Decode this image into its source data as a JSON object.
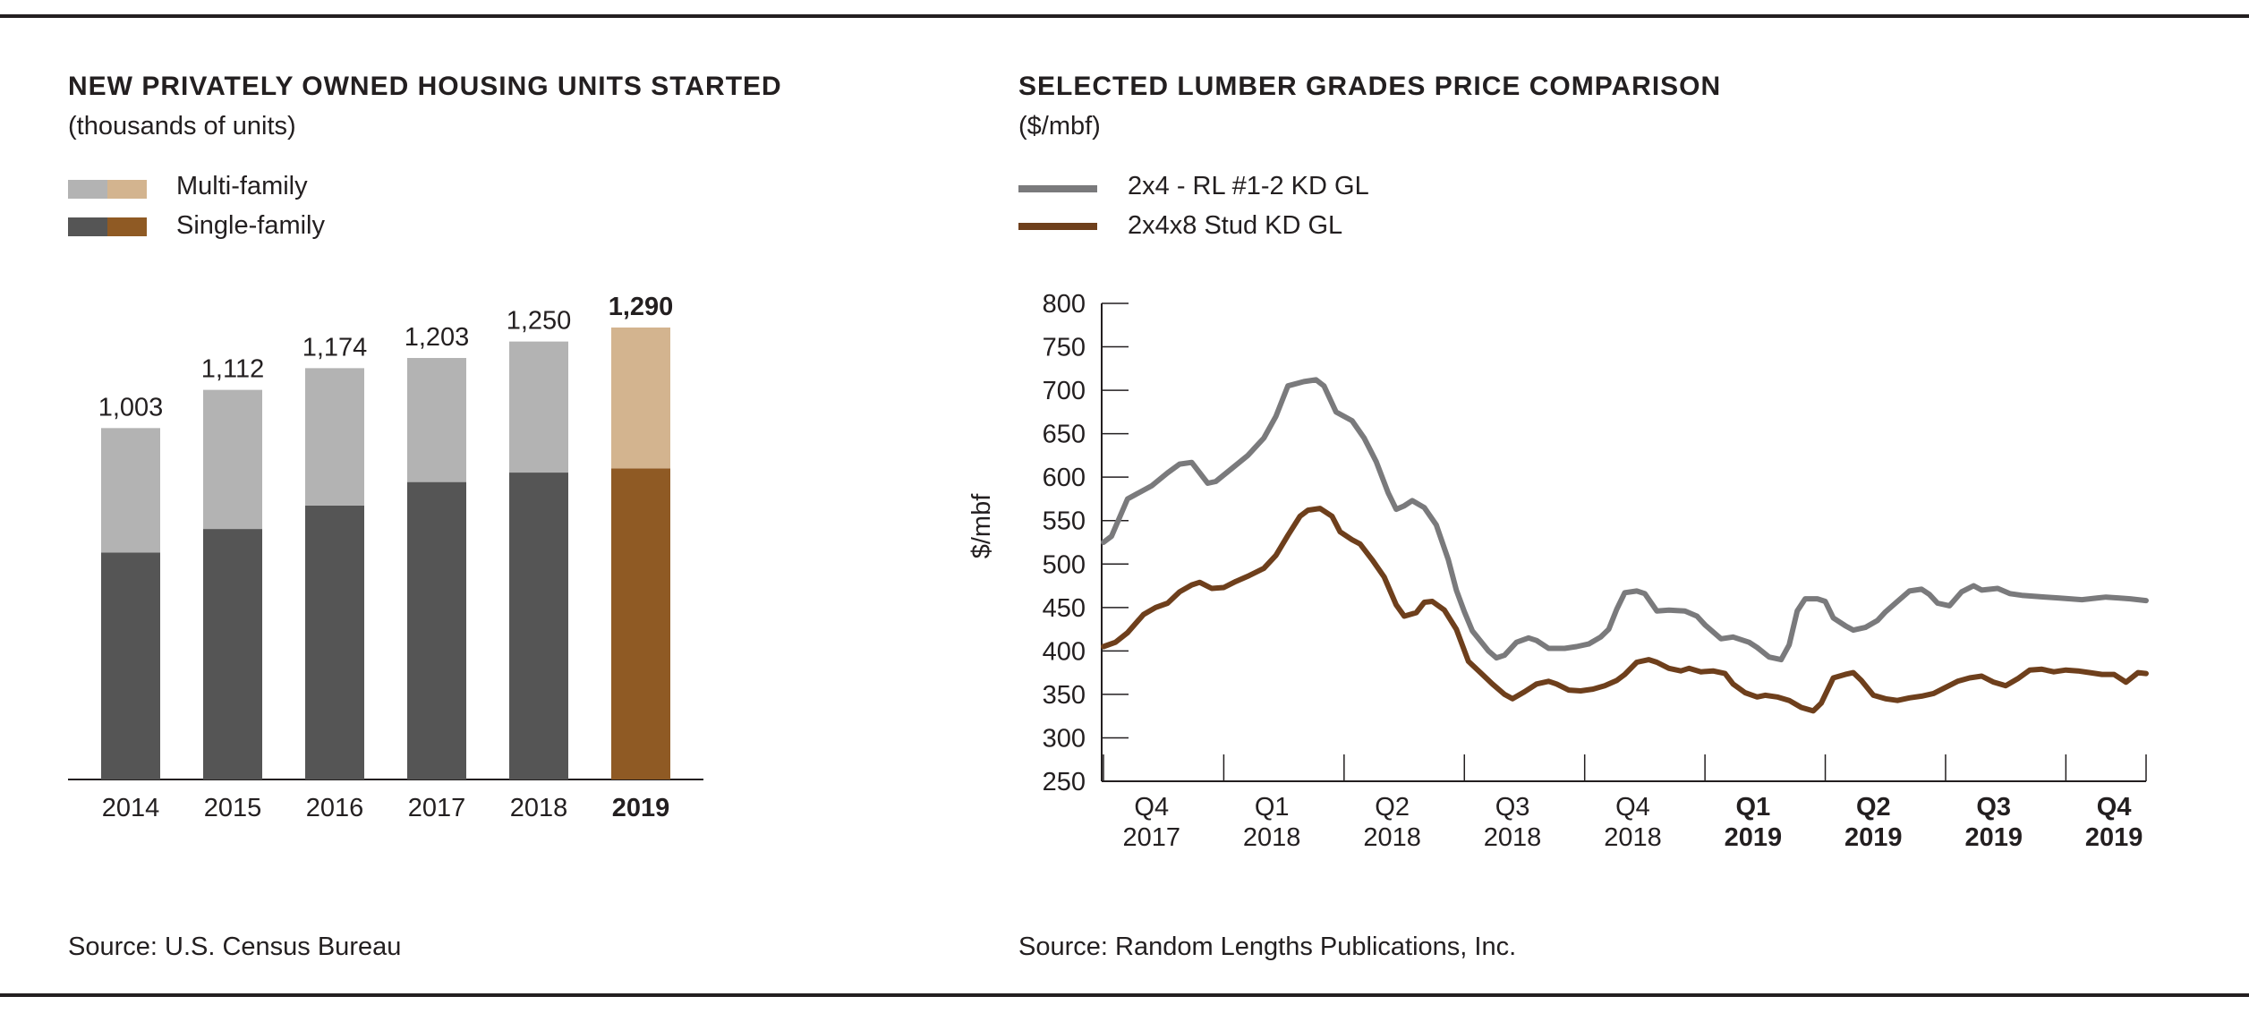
{
  "left_panel": {
    "title": "NEW PRIVATELY OWNED HOUSING UNITS STARTED",
    "subtitle": "(thousands of units)",
    "legend": [
      {
        "label": "Multi-family",
        "colors": [
          "#b3b3b3",
          "#d3b48f"
        ]
      },
      {
        "label": "Single-family",
        "colors": [
          "#555555",
          "#8f5a24"
        ]
      }
    ],
    "source": "Source: U.S. Census Bureau"
  },
  "right_panel": {
    "title": "SELECTED LUMBER GRADES PRICE COMPARISON",
    "subtitle": "($/mbf)",
    "legend": [
      {
        "label": "2x4 - RL #1-2 KD GL",
        "color": "#7a7a7c"
      },
      {
        "label": "2x4x8 Stud KD GL",
        "color": "#6e3f1c"
      }
    ],
    "source": "Source: Random Lengths Publications, Inc."
  },
  "chart_data": [
    {
      "type": "bar",
      "stacked": true,
      "categories": [
        "2014",
        "2015",
        "2016",
        "2017",
        "2018",
        "2019"
      ],
      "highlight_category": "2019",
      "totals": [
        "1,003",
        "1,112",
        "1,174",
        "1,203",
        "1,250",
        "1,290"
      ],
      "series": [
        {
          "name": "Single-family",
          "values": [
            648,
            715,
            782,
            849,
            876,
            888
          ],
          "color": "#555555",
          "highlight_color": "#8f5a24"
        },
        {
          "name": "Multi-family",
          "values": [
            355,
            397,
            392,
            354,
            374,
            402
          ],
          "color": "#b3b3b3",
          "highlight_color": "#d3b48f"
        }
      ],
      "ylim": [
        0,
        1400
      ]
    },
    {
      "type": "line",
      "ylabel": "$/mbf",
      "ylim": [
        250,
        800
      ],
      "yticks": [
        800,
        750,
        700,
        650,
        600,
        550,
        500,
        450,
        400,
        350,
        300,
        250
      ],
      "x_range": [
        0,
        26
      ],
      "x_tick_positions": [
        0,
        3,
        6,
        9,
        12,
        15,
        18,
        21,
        24,
        26
      ],
      "quarter_labels": [
        {
          "q": "Q4",
          "y": "2017",
          "bold": false
        },
        {
          "q": "Q1",
          "y": "2018",
          "bold": false
        },
        {
          "q": "Q2",
          "y": "2018",
          "bold": false
        },
        {
          "q": "Q3",
          "y": "2018",
          "bold": false
        },
        {
          "q": "Q4",
          "y": "2018",
          "bold": false
        },
        {
          "q": "Q1",
          "y": "2019",
          "bold": true
        },
        {
          "q": "Q2",
          "y": "2019",
          "bold": true
        },
        {
          "q": "Q3",
          "y": "2019",
          "bold": true
        },
        {
          "q": "Q4",
          "y": "2019",
          "bold": true
        }
      ],
      "series": [
        {
          "name": "2x4 - RL #1-2 KD GL",
          "color": "#7a7a7c",
          "points": [
            [
              0,
              525
            ],
            [
              0.2,
              532
            ],
            [
              0.6,
              575
            ],
            [
              1.2,
              590
            ],
            [
              1.6,
              605
            ],
            [
              1.9,
              615
            ],
            [
              2.2,
              617
            ],
            [
              2.6,
              593
            ],
            [
              2.8,
              595
            ],
            [
              3.2,
              610
            ],
            [
              3.6,
              625
            ],
            [
              4.0,
              645
            ],
            [
              4.3,
              670
            ],
            [
              4.6,
              705
            ],
            [
              5.0,
              710
            ],
            [
              5.3,
              712
            ],
            [
              5.5,
              705
            ],
            [
              5.8,
              675
            ],
            [
              6.2,
              665
            ],
            [
              6.5,
              645
            ],
            [
              6.8,
              618
            ],
            [
              7.1,
              582
            ],
            [
              7.3,
              563
            ],
            [
              7.5,
              567
            ],
            [
              7.7,
              573
            ],
            [
              8.0,
              565
            ],
            [
              8.3,
              545
            ],
            [
              8.6,
              505
            ],
            [
              8.8,
              470
            ],
            [
              9.0,
              445
            ],
            [
              9.2,
              423
            ],
            [
              9.6,
              400
            ],
            [
              9.8,
              392
            ],
            [
              10.0,
              395
            ],
            [
              10.3,
              410
            ],
            [
              10.6,
              415
            ],
            [
              10.8,
              412
            ],
            [
              11.1,
              403
            ],
            [
              11.5,
              403
            ],
            [
              11.8,
              405
            ],
            [
              12.1,
              408
            ],
            [
              12.4,
              416
            ],
            [
              12.6,
              425
            ],
            [
              12.8,
              448
            ],
            [
              13.0,
              467
            ],
            [
              13.3,
              469
            ],
            [
              13.5,
              466
            ],
            [
              13.8,
              446
            ],
            [
              14.1,
              447
            ],
            [
              14.5,
              446
            ],
            [
              14.8,
              440
            ],
            [
              15.0,
              430
            ],
            [
              15.4,
              414
            ],
            [
              15.7,
              416
            ],
            [
              16.1,
              410
            ],
            [
              16.3,
              404
            ],
            [
              16.6,
              393
            ],
            [
              16.9,
              390
            ],
            [
              17.1,
              407
            ],
            [
              17.3,
              446
            ],
            [
              17.5,
              460
            ],
            [
              17.8,
              460
            ],
            [
              18.0,
              457
            ],
            [
              18.2,
              438
            ],
            [
              18.5,
              429
            ],
            [
              18.7,
              424
            ],
            [
              19.0,
              427
            ],
            [
              19.3,
              435
            ],
            [
              19.5,
              445
            ],
            [
              19.8,
              457
            ],
            [
              20.1,
              469
            ],
            [
              20.4,
              471
            ],
            [
              20.6,
              465
            ],
            [
              20.8,
              455
            ],
            [
              21.1,
              452
            ],
            [
              21.4,
              468
            ],
            [
              21.7,
              475
            ],
            [
              21.9,
              470
            ],
            [
              22.3,
              472
            ],
            [
              22.6,
              466
            ],
            [
              22.9,
              464
            ],
            [
              23.2,
              463
            ],
            [
              23.5,
              462
            ],
            [
              23.8,
              461
            ],
            [
              24.1,
              460
            ],
            [
              24.4,
              459
            ],
            [
              24.8,
              461
            ],
            [
              25.0,
              462
            ],
            [
              25.3,
              461
            ],
            [
              25.6,
              460
            ],
            [
              25.8,
              459
            ],
            [
              26.0,
              458
            ]
          ]
        },
        {
          "name": "2x4x8 Stud KD GL",
          "color": "#6e3f1c",
          "points": [
            [
              0,
              405
            ],
            [
              0.3,
              410
            ],
            [
              0.6,
              421
            ],
            [
              1.0,
              442
            ],
            [
              1.3,
              450
            ],
            [
              1.6,
              455
            ],
            [
              1.9,
              468
            ],
            [
              2.2,
              476
            ],
            [
              2.4,
              479
            ],
            [
              2.7,
              472
            ],
            [
              3.0,
              473
            ],
            [
              3.3,
              480
            ],
            [
              3.6,
              486
            ],
            [
              4.0,
              495
            ],
            [
              4.3,
              510
            ],
            [
              4.6,
              533
            ],
            [
              4.9,
              555
            ],
            [
              5.1,
              562
            ],
            [
              5.4,
              564
            ],
            [
              5.7,
              555
            ],
            [
              5.9,
              537
            ],
            [
              6.2,
              528
            ],
            [
              6.4,
              523
            ],
            [
              6.7,
              505
            ],
            [
              7.0,
              485
            ],
            [
              7.3,
              453
            ],
            [
              7.5,
              440
            ],
            [
              7.8,
              444
            ],
            [
              8.0,
              456
            ],
            [
              8.2,
              457
            ],
            [
              8.5,
              447
            ],
            [
              8.8,
              425
            ],
            [
              9.1,
              388
            ],
            [
              9.4,
              375
            ],
            [
              9.7,
              362
            ],
            [
              10.0,
              350
            ],
            [
              10.2,
              345
            ],
            [
              10.5,
              353
            ],
            [
              10.8,
              362
            ],
            [
              11.1,
              365
            ],
            [
              11.3,
              362
            ],
            [
              11.6,
              355
            ],
            [
              11.9,
              354
            ],
            [
              12.2,
              356
            ],
            [
              12.5,
              360
            ],
            [
              12.8,
              366
            ],
            [
              13.0,
              373
            ],
            [
              13.3,
              387
            ],
            [
              13.6,
              390
            ],
            [
              13.8,
              387
            ],
            [
              14.1,
              380
            ],
            [
              14.4,
              377
            ],
            [
              14.6,
              380
            ],
            [
              14.9,
              376
            ],
            [
              15.2,
              377
            ],
            [
              15.5,
              374
            ],
            [
              15.7,
              362
            ],
            [
              16.0,
              352
            ],
            [
              16.3,
              347
            ],
            [
              16.5,
              349
            ],
            [
              16.8,
              347
            ],
            [
              17.1,
              343
            ],
            [
              17.4,
              335
            ],
            [
              17.7,
              331
            ],
            [
              17.9,
              340
            ],
            [
              18.2,
              369
            ],
            [
              18.5,
              373
            ],
            [
              18.7,
              375
            ],
            [
              18.9,
              366
            ],
            [
              19.2,
              349
            ],
            [
              19.5,
              345
            ],
            [
              19.8,
              343
            ],
            [
              20.1,
              346
            ],
            [
              20.4,
              348
            ],
            [
              20.7,
              351
            ],
            [
              21.0,
              358
            ],
            [
              21.3,
              365
            ],
            [
              21.6,
              369
            ],
            [
              21.9,
              371
            ],
            [
              22.2,
              364
            ],
            [
              22.5,
              360
            ],
            [
              22.8,
              368
            ],
            [
              23.1,
              378
            ],
            [
              23.4,
              379
            ],
            [
              23.7,
              376
            ],
            [
              24.0,
              378
            ],
            [
              24.3,
              377
            ],
            [
              24.6,
              375
            ],
            [
              24.9,
              373
            ],
            [
              25.2,
              373
            ],
            [
              25.5,
              364
            ],
            [
              25.8,
              375
            ],
            [
              26.0,
              374
            ]
          ]
        }
      ]
    }
  ]
}
